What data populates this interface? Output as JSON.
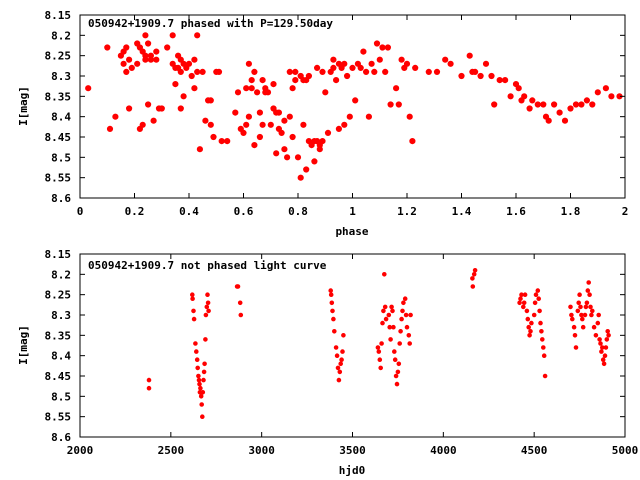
{
  "colors": {
    "points": "#ff0000",
    "axes": "#000000",
    "background": "#ffffff"
  },
  "chart_data": [
    {
      "type": "scatter",
      "title": "050942+1909.7 phased with P=129.50day",
      "xlabel": "phase",
      "ylabel": "I[mag]",
      "xlim": [
        0,
        2
      ],
      "ylim": [
        8.15,
        8.6
      ],
      "y_inverted": true,
      "grid": false,
      "xticks": [
        "0",
        "0.2",
        "0.4",
        "0.6",
        "0.8",
        "1",
        "1.2",
        "1.4",
        "1.6",
        "1.8",
        "2"
      ],
      "yticks": [
        "8.15",
        "8.2",
        "8.25",
        "8.3",
        "8.35",
        "8.4",
        "8.45",
        "8.5",
        "8.55",
        "8.6"
      ],
      "points": [
        [
          0.03,
          8.33
        ],
        [
          0.1,
          8.23
        ],
        [
          0.11,
          8.43
        ],
        [
          0.13,
          8.4
        ],
        [
          0.15,
          8.25
        ],
        [
          0.16,
          8.24
        ],
        [
          0.16,
          8.27
        ],
        [
          0.17,
          8.29
        ],
        [
          0.17,
          8.23
        ],
        [
          0.18,
          8.26
        ],
        [
          0.18,
          8.38
        ],
        [
          0.19,
          8.28
        ],
        [
          0.21,
          8.22
        ],
        [
          0.21,
          8.27
        ],
        [
          0.22,
          8.43
        ],
        [
          0.22,
          8.23
        ],
        [
          0.23,
          8.24
        ],
        [
          0.23,
          8.42
        ],
        [
          0.24,
          8.25
        ],
        [
          0.24,
          8.2
        ],
        [
          0.24,
          8.26
        ],
        [
          0.25,
          8.22
        ],
        [
          0.25,
          8.37
        ],
        [
          0.26,
          8.25
        ],
        [
          0.26,
          8.26
        ],
        [
          0.27,
          8.41
        ],
        [
          0.28,
          8.24
        ],
        [
          0.28,
          8.26
        ],
        [
          0.29,
          8.38
        ],
        [
          0.3,
          8.38
        ],
        [
          0.32,
          8.23
        ],
        [
          0.34,
          8.2
        ],
        [
          0.34,
          8.27
        ],
        [
          0.35,
          8.28
        ],
        [
          0.35,
          8.32
        ],
        [
          0.36,
          8.25
        ],
        [
          0.36,
          8.28
        ],
        [
          0.37,
          8.29
        ],
        [
          0.37,
          8.26
        ],
        [
          0.37,
          8.38
        ],
        [
          0.38,
          8.27
        ],
        [
          0.38,
          8.35
        ],
        [
          0.39,
          8.28
        ],
        [
          0.4,
          8.27
        ],
        [
          0.41,
          8.3
        ],
        [
          0.42,
          8.26
        ],
        [
          0.42,
          8.33
        ],
        [
          0.43,
          8.2
        ],
        [
          0.43,
          8.29
        ],
        [
          0.44,
          8.48
        ],
        [
          0.45,
          8.29
        ],
        [
          0.46,
          8.41
        ],
        [
          0.47,
          8.36
        ],
        [
          0.48,
          8.36
        ],
        [
          0.48,
          8.42
        ],
        [
          0.49,
          8.45
        ],
        [
          0.5,
          8.29
        ],
        [
          0.51,
          8.29
        ],
        [
          0.52,
          8.46
        ],
        [
          0.54,
          8.46
        ],
        [
          0.57,
          8.39
        ],
        [
          0.58,
          8.34
        ],
        [
          0.59,
          8.43
        ],
        [
          0.6,
          8.44
        ],
        [
          0.61,
          8.42
        ],
        [
          0.61,
          8.33
        ],
        [
          0.62,
          8.4
        ],
        [
          0.62,
          8.27
        ],
        [
          0.63,
          8.33
        ],
        [
          0.63,
          8.31
        ],
        [
          0.64,
          8.29
        ],
        [
          0.64,
          8.47
        ],
        [
          0.65,
          8.34
        ],
        [
          0.66,
          8.45
        ],
        [
          0.66,
          8.39
        ],
        [
          0.67,
          8.42
        ],
        [
          0.67,
          8.31
        ],
        [
          0.68,
          8.34
        ],
        [
          0.68,
          8.33
        ],
        [
          0.69,
          8.34
        ],
        [
          0.7,
          8.42
        ],
        [
          0.71,
          8.32
        ],
        [
          0.71,
          8.38
        ],
        [
          0.72,
          8.39
        ],
        [
          0.72,
          8.49
        ],
        [
          0.73,
          8.43
        ],
        [
          0.73,
          8.39
        ],
        [
          0.74,
          8.44
        ],
        [
          0.75,
          8.41
        ],
        [
          0.75,
          8.48
        ],
        [
          0.76,
          8.5
        ],
        [
          0.77,
          8.29
        ],
        [
          0.77,
          8.4
        ],
        [
          0.78,
          8.45
        ],
        [
          0.78,
          8.33
        ],
        [
          0.79,
          8.31
        ],
        [
          0.79,
          8.29
        ],
        [
          0.8,
          8.5
        ],
        [
          0.81,
          8.55
        ],
        [
          0.81,
          8.3
        ],
        [
          0.82,
          8.42
        ],
        [
          0.82,
          8.31
        ],
        [
          0.83,
          8.53
        ],
        [
          0.83,
          8.31
        ],
        [
          0.84,
          8.46
        ],
        [
          0.84,
          8.3
        ],
        [
          0.85,
          8.47
        ],
        [
          0.86,
          8.51
        ],
        [
          0.86,
          8.46
        ],
        [
          0.87,
          8.46
        ],
        [
          0.87,
          8.28
        ],
        [
          0.88,
          8.48
        ],
        [
          0.88,
          8.47
        ],
        [
          0.89,
          8.46
        ],
        [
          0.89,
          8.29
        ],
        [
          0.9,
          8.34
        ],
        [
          0.91,
          8.44
        ],
        [
          0.92,
          8.29
        ],
        [
          0.93,
          8.28
        ],
        [
          0.93,
          8.26
        ],
        [
          0.94,
          8.31
        ],
        [
          0.95,
          8.43
        ],
        [
          0.95,
          8.27
        ],
        [
          0.96,
          8.28
        ],
        [
          0.97,
          8.42
        ],
        [
          0.97,
          8.27
        ],
        [
          0.98,
          8.3
        ],
        [
          0.99,
          8.4
        ],
        [
          1.0,
          8.28
        ],
        [
          1.01,
          8.36
        ],
        [
          1.02,
          8.27
        ],
        [
          1.03,
          8.28
        ],
        [
          1.04,
          8.24
        ],
        [
          1.05,
          8.29
        ],
        [
          1.06,
          8.4
        ],
        [
          1.07,
          8.27
        ],
        [
          1.08,
          8.29
        ],
        [
          1.09,
          8.22
        ],
        [
          1.1,
          8.26
        ],
        [
          1.11,
          8.23
        ],
        [
          1.12,
          8.29
        ],
        [
          1.13,
          8.23
        ],
        [
          1.14,
          8.37
        ],
        [
          1.16,
          8.33
        ],
        [
          1.17,
          8.37
        ],
        [
          1.18,
          8.26
        ],
        [
          1.19,
          8.28
        ],
        [
          1.2,
          8.27
        ],
        [
          1.21,
          8.4
        ],
        [
          1.22,
          8.46
        ],
        [
          1.23,
          8.28
        ],
        [
          1.28,
          8.29
        ],
        [
          1.31,
          8.29
        ],
        [
          1.34,
          8.26
        ],
        [
          1.36,
          8.27
        ],
        [
          1.4,
          8.3
        ],
        [
          1.43,
          8.25
        ],
        [
          1.44,
          8.29
        ],
        [
          1.45,
          8.29
        ],
        [
          1.47,
          8.3
        ],
        [
          1.49,
          8.27
        ],
        [
          1.51,
          8.3
        ],
        [
          1.52,
          8.37
        ],
        [
          1.54,
          8.31
        ],
        [
          1.56,
          8.31
        ],
        [
          1.58,
          8.35
        ],
        [
          1.6,
          8.32
        ],
        [
          1.61,
          8.33
        ],
        [
          1.62,
          8.36
        ],
        [
          1.63,
          8.35
        ],
        [
          1.65,
          8.38
        ],
        [
          1.66,
          8.36
        ],
        [
          1.68,
          8.37
        ],
        [
          1.7,
          8.37
        ],
        [
          1.71,
          8.4
        ],
        [
          1.72,
          8.41
        ],
        [
          1.74,
          8.37
        ],
        [
          1.76,
          8.39
        ],
        [
          1.78,
          8.41
        ],
        [
          1.8,
          8.38
        ],
        [
          1.82,
          8.37
        ],
        [
          1.84,
          8.37
        ],
        [
          1.86,
          8.36
        ],
        [
          1.88,
          8.37
        ],
        [
          1.9,
          8.34
        ],
        [
          1.93,
          8.33
        ],
        [
          1.95,
          8.35
        ],
        [
          1.98,
          8.35
        ]
      ]
    },
    {
      "type": "scatter",
      "title": "050942+1909.7 not phased light curve",
      "xlabel": "hjd0",
      "ylabel": "I[mag]",
      "xlim": [
        2000,
        5000
      ],
      "ylim": [
        8.15,
        8.6
      ],
      "y_inverted": true,
      "grid": false,
      "xticks": [
        "2000",
        "2500",
        "3000",
        "3500",
        "4000",
        "4500",
        "5000"
      ],
      "yticks": [
        "8.15",
        "8.2",
        "8.25",
        "8.3",
        "8.35",
        "8.4",
        "8.45",
        "8.5",
        "8.55",
        "8.6"
      ],
      "points": [
        [
          2380,
          8.46
        ],
        [
          2380,
          8.48
        ],
        [
          2618,
          8.25
        ],
        [
          2620,
          8.26
        ],
        [
          2625,
          8.29
        ],
        [
          2628,
          8.31
        ],
        [
          2635,
          8.37
        ],
        [
          2640,
          8.39
        ],
        [
          2645,
          8.41
        ],
        [
          2648,
          8.43
        ],
        [
          2652,
          8.45
        ],
        [
          2655,
          8.46
        ],
        [
          2658,
          8.47
        ],
        [
          2660,
          8.49
        ],
        [
          2663,
          8.48
        ],
        [
          2667,
          8.5
        ],
        [
          2670,
          8.52
        ],
        [
          2673,
          8.55
        ],
        [
          2676,
          8.49
        ],
        [
          2680,
          8.46
        ],
        [
          2683,
          8.44
        ],
        [
          2686,
          8.42
        ],
        [
          2690,
          8.36
        ],
        [
          2693,
          8.3
        ],
        [
          2698,
          8.28
        ],
        [
          2702,
          8.25
        ],
        [
          2705,
          8.27
        ],
        [
          2708,
          8.29
        ],
        [
          2865,
          8.23
        ],
        [
          2870,
          8.23
        ],
        [
          2882,
          8.27
        ],
        [
          2885,
          8.3
        ],
        [
          3380,
          8.24
        ],
        [
          3383,
          8.25
        ],
        [
          3386,
          8.27
        ],
        [
          3390,
          8.29
        ],
        [
          3395,
          8.31
        ],
        [
          3400,
          8.34
        ],
        [
          3410,
          8.38
        ],
        [
          3415,
          8.4
        ],
        [
          3420,
          8.43
        ],
        [
          3425,
          8.46
        ],
        [
          3430,
          8.44
        ],
        [
          3435,
          8.42
        ],
        [
          3440,
          8.41
        ],
        [
          3445,
          8.39
        ],
        [
          3450,
          8.35
        ],
        [
          3640,
          8.38
        ],
        [
          3645,
          8.39
        ],
        [
          3650,
          8.41
        ],
        [
          3655,
          8.43
        ],
        [
          3660,
          8.37
        ],
        [
          3665,
          8.32
        ],
        [
          3670,
          8.29
        ],
        [
          3675,
          8.2
        ],
        [
          3680,
          8.28
        ],
        [
          3685,
          8.31
        ],
        [
          3700,
          8.3
        ],
        [
          3705,
          8.33
        ],
        [
          3710,
          8.36
        ],
        [
          3715,
          8.28
        ],
        [
          3720,
          8.29
        ],
        [
          3725,
          8.33
        ],
        [
          3730,
          8.39
        ],
        [
          3735,
          8.41
        ],
        [
          3740,
          8.45
        ],
        [
          3745,
          8.47
        ],
        [
          3750,
          8.44
        ],
        [
          3755,
          8.42
        ],
        [
          3760,
          8.37
        ],
        [
          3765,
          8.34
        ],
        [
          3770,
          8.31
        ],
        [
          3775,
          8.29
        ],
        [
          3780,
          8.27
        ],
        [
          3790,
          8.26
        ],
        [
          3795,
          8.3
        ],
        [
          3800,
          8.33
        ],
        [
          3810,
          8.35
        ],
        [
          3815,
          8.37
        ],
        [
          3820,
          8.3
        ],
        [
          4160,
          8.21
        ],
        [
          4162,
          8.23
        ],
        [
          4170,
          8.2
        ],
        [
          4175,
          8.19
        ],
        [
          4420,
          8.27
        ],
        [
          4425,
          8.26
        ],
        [
          4430,
          8.25
        ],
        [
          4440,
          8.28
        ],
        [
          4445,
          8.27
        ],
        [
          4450,
          8.25
        ],
        [
          4460,
          8.29
        ],
        [
          4465,
          8.31
        ],
        [
          4470,
          8.33
        ],
        [
          4475,
          8.35
        ],
        [
          4480,
          8.34
        ],
        [
          4485,
          8.32
        ],
        [
          4500,
          8.3
        ],
        [
          4505,
          8.27
        ],
        [
          4510,
          8.25
        ],
        [
          4520,
          8.24
        ],
        [
          4525,
          8.26
        ],
        [
          4530,
          8.29
        ],
        [
          4535,
          8.32
        ],
        [
          4540,
          8.34
        ],
        [
          4545,
          8.36
        ],
        [
          4550,
          8.38
        ],
        [
          4555,
          8.4
        ],
        [
          4560,
          8.45
        ],
        [
          4700,
          8.28
        ],
        [
          4705,
          8.3
        ],
        [
          4710,
          8.31
        ],
        [
          4720,
          8.33
        ],
        [
          4725,
          8.35
        ],
        [
          4730,
          8.38
        ],
        [
          4740,
          8.29
        ],
        [
          4745,
          8.27
        ],
        [
          4750,
          8.25
        ],
        [
          4755,
          8.28
        ],
        [
          4760,
          8.3
        ],
        [
          4765,
          8.31
        ],
        [
          4770,
          8.33
        ],
        [
          4780,
          8.3
        ],
        [
          4785,
          8.28
        ],
        [
          4790,
          8.27
        ],
        [
          4795,
          8.24
        ],
        [
          4800,
          8.22
        ],
        [
          4805,
          8.25
        ],
        [
          4810,
          8.28
        ],
        [
          4815,
          8.3
        ],
        [
          4820,
          8.29
        ],
        [
          4830,
          8.33
        ],
        [
          4840,
          8.35
        ],
        [
          4850,
          8.32
        ],
        [
          4855,
          8.3
        ],
        [
          4860,
          8.36
        ],
        [
          4865,
          8.37
        ],
        [
          4870,
          8.39
        ],
        [
          4875,
          8.38
        ],
        [
          4880,
          8.41
        ],
        [
          4885,
          8.42
        ],
        [
          4890,
          8.4
        ],
        [
          4895,
          8.38
        ],
        [
          4900,
          8.36
        ],
        [
          4905,
          8.34
        ],
        [
          4910,
          8.35
        ]
      ]
    }
  ]
}
